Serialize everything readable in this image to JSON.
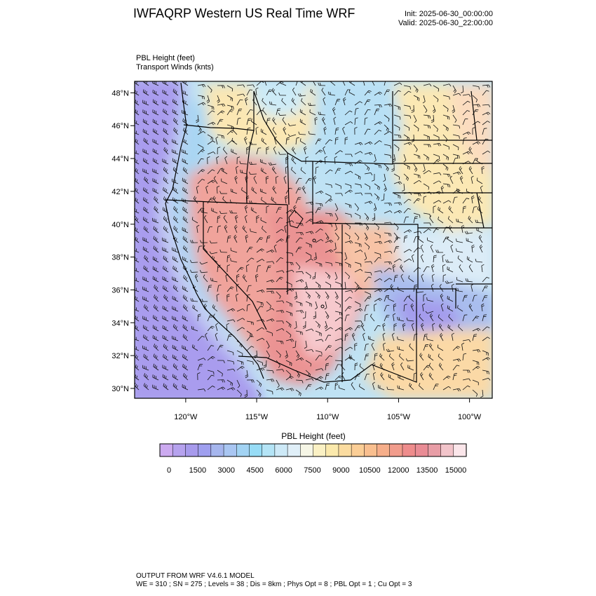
{
  "header": {
    "title": "IWFAQRP Western US Real Time WRF",
    "init": "Init: 2025-06-30_00:00:00",
    "valid": "Valid: 2025-06-30_22:00:00"
  },
  "fields": {
    "line1": "PBL Height   (feet)",
    "line2": "Transport Winds   (knts)"
  },
  "map": {
    "lat_labels": [
      "48°N",
      "46°N",
      "44°N",
      "42°N",
      "40°N",
      "38°N",
      "36°N",
      "34°N",
      "32°N",
      "30°N"
    ],
    "lon_labels": [
      "120°W",
      "115°W",
      "110°W",
      "105°W",
      "100°W"
    ],
    "extent": {
      "lon_min": -123.6,
      "lon_max": -98.4,
      "lat_min": 29.4,
      "lat_max": 48.7
    }
  },
  "colorbar": {
    "title": "PBL Height  (feet)",
    "ticks": [
      "0",
      "1500",
      "3000",
      "4500",
      "6000",
      "7500",
      "9000",
      "10500",
      "12000",
      "13500",
      "15000"
    ],
    "colors": [
      "#ccaaf0",
      "#b6a2ee",
      "#a79aec",
      "#9f9fef",
      "#a6b6ee",
      "#a9c6f2",
      "#a2d3f3",
      "#97dcf6",
      "#b4e4f6",
      "#cde9f7",
      "#e0eff8",
      "#f6f6e6",
      "#fbf1c4",
      "#fbe9ac",
      "#fbdca0",
      "#fbce96",
      "#f9bf8f",
      "#f6ae8a",
      "#f19c8c",
      "#ee8c8c",
      "#e98c95",
      "#e89da6",
      "#f2c4ca",
      "#fbe6ea"
    ]
  },
  "footer": {
    "line1": "OUTPUT FROM WRF V4.6.1 MODEL",
    "line2": "WE = 310 ; SN = 275 ; Levels = 38 ; Dis = 8km ; Phys Opt = 8 ; PBL Opt = 1 ; Cu Opt = 3"
  }
}
